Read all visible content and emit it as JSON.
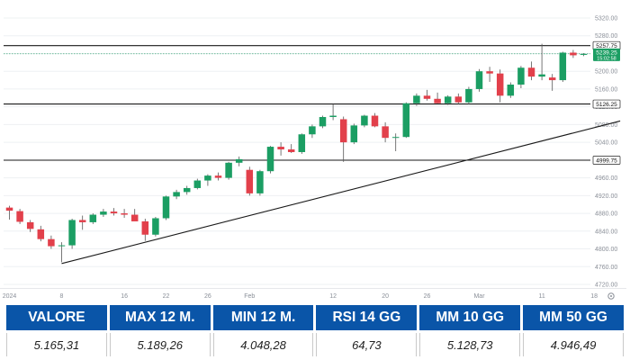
{
  "chart_data": {
    "type": "candlestick",
    "y_ticks": [
      "5320.00",
      "5280.00",
      "5240.00",
      "5200.00",
      "5160.00",
      "5120.00",
      "5080.00",
      "5040.00",
      "5000.00",
      "4960.00",
      "4920.00",
      "4880.00",
      "4840.00",
      "4800.00",
      "4760.00",
      "4720.00"
    ],
    "x_ticks": [
      {
        "label": "2024",
        "i": 0
      },
      {
        "label": "8",
        "i": 5
      },
      {
        "label": "16",
        "i": 11
      },
      {
        "label": "22",
        "i": 15
      },
      {
        "label": "26",
        "i": 19
      },
      {
        "label": "Feb",
        "i": 23
      },
      {
        "label": "12",
        "i": 31
      },
      {
        "label": "20",
        "i": 36
      },
      {
        "label": "26",
        "i": 40
      },
      {
        "label": "Mar",
        "i": 45
      },
      {
        "label": "11",
        "i": 51
      },
      {
        "label": "18",
        "i": 56
      }
    ],
    "candles": [
      {
        "o": 4893,
        "h": 4897,
        "l": 4866,
        "c": 4886
      },
      {
        "o": 4885,
        "h": 4890,
        "l": 4856,
        "c": 4861
      },
      {
        "o": 4860,
        "h": 4865,
        "l": 4838,
        "c": 4845
      },
      {
        "o": 4844,
        "h": 4852,
        "l": 4817,
        "c": 4822
      },
      {
        "o": 4822,
        "h": 4830,
        "l": 4800,
        "c": 4806
      },
      {
        "o": 4806,
        "h": 4815,
        "l": 4770,
        "c": 4808
      },
      {
        "o": 4808,
        "h": 4868,
        "l": 4800,
        "c": 4865
      },
      {
        "o": 4865,
        "h": 4875,
        "l": 4843,
        "c": 4860
      },
      {
        "o": 4860,
        "h": 4880,
        "l": 4856,
        "c": 4877
      },
      {
        "o": 4877,
        "h": 4890,
        "l": 4872,
        "c": 4884
      },
      {
        "o": 4884,
        "h": 4892,
        "l": 4875,
        "c": 4880
      },
      {
        "o": 4880,
        "h": 4890,
        "l": 4870,
        "c": 4877
      },
      {
        "o": 4877,
        "h": 4890,
        "l": 4865,
        "c": 4862
      },
      {
        "o": 4862,
        "h": 4868,
        "l": 4818,
        "c": 4832
      },
      {
        "o": 4832,
        "h": 4872,
        "l": 4828,
        "c": 4869
      },
      {
        "o": 4869,
        "h": 4920,
        "l": 4865,
        "c": 4918
      },
      {
        "o": 4918,
        "h": 4933,
        "l": 4912,
        "c": 4928
      },
      {
        "o": 4928,
        "h": 4942,
        "l": 4922,
        "c": 4937
      },
      {
        "o": 4937,
        "h": 4958,
        "l": 4934,
        "c": 4954
      },
      {
        "o": 4954,
        "h": 4968,
        "l": 4942,
        "c": 4965
      },
      {
        "o": 4965,
        "h": 4972,
        "l": 4954,
        "c": 4960
      },
      {
        "o": 4960,
        "h": 4996,
        "l": 4956,
        "c": 4994
      },
      {
        "o": 4994,
        "h": 5008,
        "l": 4986,
        "c": 5002
      },
      {
        "o": 4978,
        "h": 4985,
        "l": 4920,
        "c": 4925
      },
      {
        "o": 4925,
        "h": 4978,
        "l": 4920,
        "c": 4975
      },
      {
        "o": 4975,
        "h": 5032,
        "l": 4970,
        "c": 5030
      },
      {
        "o": 5030,
        "h": 5040,
        "l": 5010,
        "c": 5024
      },
      {
        "o": 5024,
        "h": 5036,
        "l": 5016,
        "c": 5018
      },
      {
        "o": 5018,
        "h": 5060,
        "l": 5014,
        "c": 5058
      },
      {
        "o": 5058,
        "h": 5080,
        "l": 5050,
        "c": 5076
      },
      {
        "o": 5076,
        "h": 5100,
        "l": 5072,
        "c": 5097
      },
      {
        "o": 5097,
        "h": 5126,
        "l": 5090,
        "c": 5100
      },
      {
        "o": 5092,
        "h": 5098,
        "l": 4996,
        "c": 5040
      },
      {
        "o": 5040,
        "h": 5082,
        "l": 5036,
        "c": 5078
      },
      {
        "o": 5078,
        "h": 5102,
        "l": 5074,
        "c": 5100
      },
      {
        "o": 5100,
        "h": 5106,
        "l": 5074,
        "c": 5076
      },
      {
        "o": 5076,
        "h": 5085,
        "l": 5040,
        "c": 5050
      },
      {
        "o": 5050,
        "h": 5060,
        "l": 5020,
        "c": 5052
      },
      {
        "o": 5052,
        "h": 5130,
        "l": 5050,
        "c": 5128
      },
      {
        "o": 5128,
        "h": 5150,
        "l": 5122,
        "c": 5145
      },
      {
        "o": 5145,
        "h": 5158,
        "l": 5134,
        "c": 5138
      },
      {
        "o": 5138,
        "h": 5152,
        "l": 5128,
        "c": 5128
      },
      {
        "o": 5128,
        "h": 5146,
        "l": 5124,
        "c": 5143
      },
      {
        "o": 5143,
        "h": 5150,
        "l": 5126,
        "c": 5130
      },
      {
        "o": 5130,
        "h": 5165,
        "l": 5126,
        "c": 5160
      },
      {
        "o": 5160,
        "h": 5205,
        "l": 5154,
        "c": 5200
      },
      {
        "o": 5200,
        "h": 5210,
        "l": 5176,
        "c": 5195
      },
      {
        "o": 5195,
        "h": 5204,
        "l": 5130,
        "c": 5145
      },
      {
        "o": 5145,
        "h": 5175,
        "l": 5140,
        "c": 5170
      },
      {
        "o": 5170,
        "h": 5212,
        "l": 5162,
        "c": 5208
      },
      {
        "o": 5208,
        "h": 5222,
        "l": 5180,
        "c": 5188
      },
      {
        "o": 5188,
        "h": 5262,
        "l": 5180,
        "c": 5193
      },
      {
        "o": 5186,
        "h": 5194,
        "l": 5156,
        "c": 5180
      },
      {
        "o": 5180,
        "h": 5244,
        "l": 5176,
        "c": 5242
      },
      {
        "o": 5242,
        "h": 5248,
        "l": 5230,
        "c": 5236
      },
      {
        "o": 5237,
        "h": 5241,
        "l": 5234,
        "c": 5239
      }
    ],
    "levels": [
      {
        "value": 5257.75,
        "label": "5257.75"
      },
      {
        "value": 5126.25,
        "label": "5126.25"
      },
      {
        "value": 4999.75,
        "label": "4999.75"
      }
    ],
    "trendline": {
      "from": {
        "i": 5,
        "price": 4767
      },
      "to": {
        "i": 58.5,
        "price": 5088
      }
    },
    "last_price": {
      "value": 5239.25,
      "label": "5239.25",
      "time": "15:02:58"
    },
    "colors": {
      "up": "#1b9e63",
      "down": "#e2404b",
      "wick": "#555555",
      "line": "#1a1a1a",
      "grid": "#eef0f3"
    }
  },
  "stats": {
    "headers": [
      "VALORE",
      "MAX 12 M.",
      "MIN 12 M.",
      "RSI 14 GG",
      "MM 10 GG",
      "MM 50 GG"
    ],
    "values": [
      "5.165,31",
      "5.189,26",
      "4.048,28",
      "64,73",
      "5.128,73",
      "4.946,49"
    ],
    "header_color": "#0a55a8"
  }
}
